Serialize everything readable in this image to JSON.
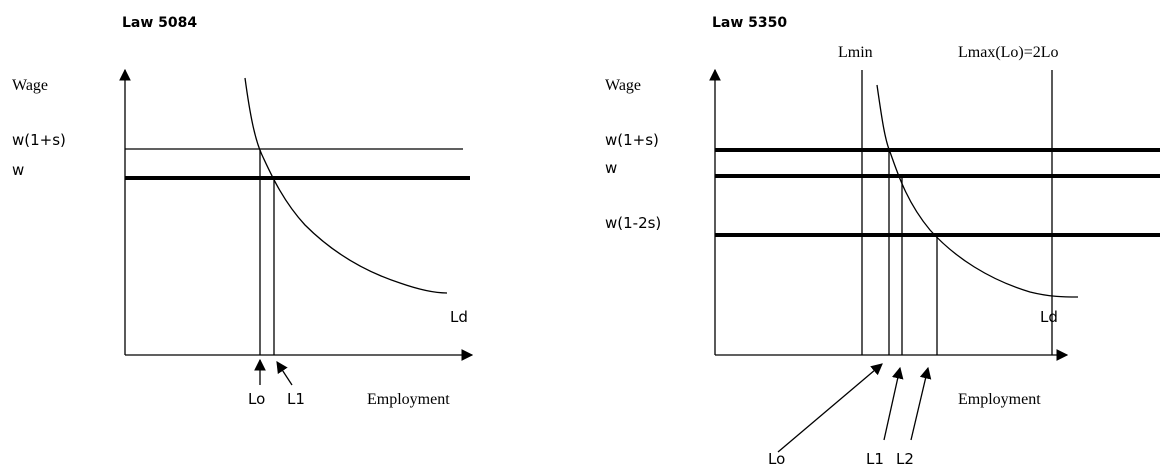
{
  "left": {
    "title": "Law 5084",
    "y_axis_label": "Wage",
    "x_axis_label": "Employment",
    "wage_levels": [
      "w(1+s)",
      "w"
    ],
    "curve_label": "Ld",
    "employment_points": [
      "Lo",
      "L1"
    ]
  },
  "right": {
    "title": "Law 5350",
    "y_axis_label": "Wage",
    "x_axis_label": "Employment",
    "wage_levels": [
      "w(1+s)",
      "w",
      "w(1-2s)"
    ],
    "bounds": [
      "Lmin",
      "Lmax(Lo)=2Lo"
    ],
    "curve_label": "Ld",
    "employment_points": [
      "Lo",
      "L1",
      "L2"
    ]
  }
}
